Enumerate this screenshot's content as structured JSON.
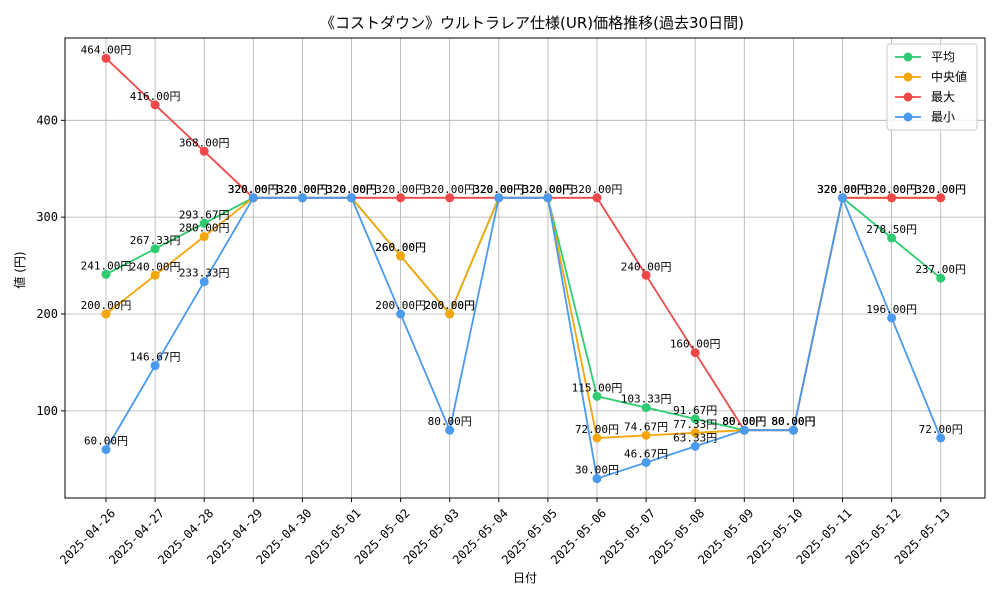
{
  "chart_data": {
    "type": "line",
    "title": "《コストダウン》ウルトラレア仕様(UR)価格推移(過去30日間)",
    "xlabel": "日付",
    "ylabel": "値 (円)",
    "ylim": [
      10,
      485
    ],
    "yticks": [
      100,
      200,
      300,
      400
    ],
    "grid": true,
    "legend_position": "top-right",
    "categories": [
      "2025-04-26",
      "2025-04-27",
      "2025-04-28",
      "2025-04-29",
      "2025-04-30",
      "2025-05-01",
      "2025-05-02",
      "2025-05-03",
      "2025-05-04",
      "2025-05-05",
      "2025-05-06",
      "2025-05-07",
      "2025-05-08",
      "2025-05-09",
      "2025-05-10",
      "2025-05-11",
      "2025-05-12",
      "2025-05-13"
    ],
    "series": [
      {
        "name": "平均",
        "color": "#2ecc71",
        "values": [
          241.0,
          267.33,
          293.67,
          320.0,
          320.0,
          320.0,
          260.0,
          200.0,
          320.0,
          320.0,
          115.0,
          103.33,
          91.67,
          80.0,
          80.0,
          320.0,
          278.5,
          237.0
        ]
      },
      {
        "name": "中央値",
        "color": "#f5a60a",
        "values": [
          200.0,
          240.0,
          280.0,
          320.0,
          320.0,
          320.0,
          260.0,
          200.0,
          320.0,
          320.0,
          72.0,
          74.67,
          77.33,
          80.0,
          80.0,
          320.0,
          320.0,
          320.0
        ]
      },
      {
        "name": "最大",
        "color": "#f04848",
        "values": [
          464.0,
          416.0,
          368.0,
          320.0,
          320.0,
          320.0,
          320.0,
          320.0,
          320.0,
          320.0,
          320.0,
          240.0,
          160.0,
          80.0,
          80.0,
          320.0,
          320.0,
          320.0
        ]
      },
      {
        "name": "最小",
        "color": "#4a9af0",
        "values": [
          60.0,
          146.67,
          233.33,
          320.0,
          320.0,
          320.0,
          200.0,
          80.0,
          320.0,
          320.0,
          30.0,
          46.67,
          63.33,
          80.0,
          80.0,
          320.0,
          196.0,
          72.0
        ]
      }
    ],
    "value_suffix": "円"
  }
}
